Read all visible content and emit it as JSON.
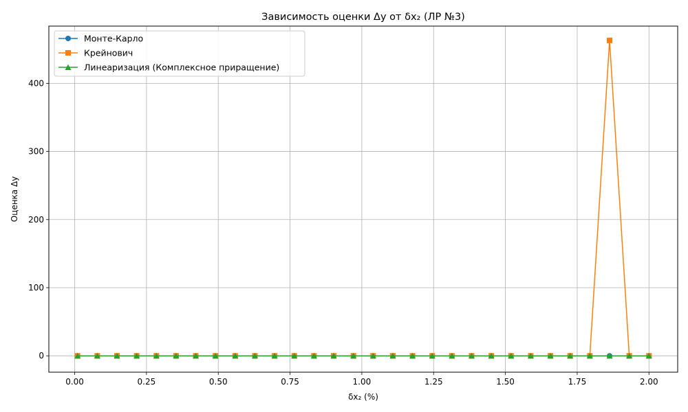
{
  "chart_data": {
    "type": "line",
    "title": "Зависимость оценки Δy от δx₂ (ЛР №3)",
    "xlabel": "δx₂ (%)",
    "ylabel": "Оценка Δy",
    "xlim": [
      -0.09,
      2.1
    ],
    "ylim": [
      -24,
      484
    ],
    "xticks": [
      0.0,
      0.25,
      0.5,
      0.75,
      1.0,
      1.25,
      1.5,
      1.75,
      2.0
    ],
    "xtick_labels": [
      "0.00",
      "0.25",
      "0.50",
      "0.75",
      "1.00",
      "1.25",
      "1.50",
      "1.75",
      "2.00"
    ],
    "yticks": [
      0,
      100,
      200,
      300,
      400
    ],
    "ytick_labels": [
      "0",
      "100",
      "200",
      "300",
      "400"
    ],
    "grid": true,
    "legend_position": "top-left",
    "x": [
      0.01,
      0.0786,
      0.1472,
      0.2159,
      0.2845,
      0.3531,
      0.4217,
      0.4903,
      0.559,
      0.6276,
      0.6962,
      0.7648,
      0.8334,
      0.9021,
      0.9707,
      1.0393,
      1.1079,
      1.1766,
      1.2452,
      1.3138,
      1.3824,
      1.451,
      1.5197,
      1.5883,
      1.6569,
      1.7255,
      1.7941,
      1.8628,
      1.9314,
      2.0
    ],
    "series": [
      {
        "name": "Монте-Карло",
        "color": "#1f77b4",
        "marker": "circle",
        "values": [
          0,
          0,
          0,
          0,
          0,
          0,
          0,
          0,
          0,
          0,
          0,
          0,
          0,
          0,
          0,
          0,
          0,
          0,
          0,
          0,
          0,
          0,
          0,
          0,
          0,
          0,
          0,
          0,
          0,
          0
        ]
      },
      {
        "name": "Крейнович",
        "color": "#ff7f0e",
        "marker": "square",
        "values": [
          0,
          0,
          0,
          0,
          0,
          0,
          0,
          0,
          0,
          0,
          0,
          0,
          0,
          0,
          0,
          0,
          0,
          0,
          0,
          0,
          0,
          0,
          0,
          0,
          0,
          0,
          0,
          463,
          0,
          0
        ]
      },
      {
        "name": "Линеаризация (Комплексное приращение)",
        "color": "#2ca02c",
        "marker": "triangle",
        "values": [
          0,
          0,
          0,
          0,
          0,
          0,
          0,
          0,
          0,
          0,
          0,
          0,
          0,
          0,
          0,
          0,
          0,
          0,
          0,
          0,
          0,
          0,
          0,
          0,
          0,
          0,
          0,
          0,
          0,
          0
        ]
      }
    ]
  }
}
